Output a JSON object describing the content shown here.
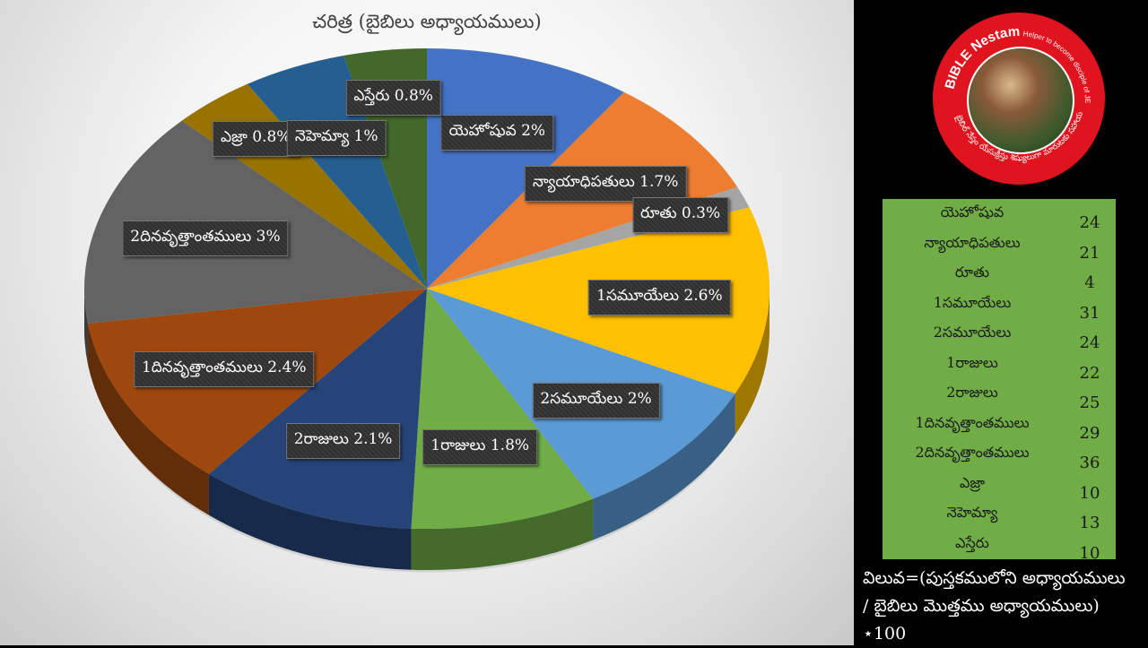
{
  "chart_data": {
    "type": "pie",
    "title": "చరిత్ర (బైబిలు అధ్యాయములు)",
    "slices": [
      {
        "name": "యెహోషువ",
        "label": "యెహోషువ 2%",
        "value": 2,
        "color": "#4472c4"
      },
      {
        "name": "న్యాయాధిపతులు",
        "label": "న్యాయాధిపతులు 1.7%",
        "value": 1.7,
        "color": "#ed7d31"
      },
      {
        "name": "రూతు",
        "label": "రూతు 0.3%",
        "value": 0.3,
        "color": "#a5a5a5"
      },
      {
        "name": "1సమూయేలు",
        "label": "1సమూయేలు 2.6%",
        "value": 2.6,
        "color": "#ffc000"
      },
      {
        "name": "2సమూయేలు",
        "label": "2సమూయేలు 2%",
        "value": 2,
        "color": "#5b9bd5"
      },
      {
        "name": "1రాజులు",
        "label": "1రాజులు 1.8%",
        "value": 1.8,
        "color": "#70ad47"
      },
      {
        "name": "2రాజులు",
        "label": "2రాజులు 2.1%",
        "value": 2.1,
        "color": "#264478"
      },
      {
        "name": "1దినవృత్తాంతములు",
        "label": "1దినవృత్తాంతములు 2.4%",
        "value": 2.4,
        "color": "#9e480e"
      },
      {
        "name": "2దినవృత్తాంతములు",
        "label": "2దినవృత్తాంతములు 3%",
        "value": 3,
        "color": "#636363"
      },
      {
        "name": "ఎజ్రా",
        "label": "ఎజ్రా 0.8%",
        "value": 0.8,
        "color": "#997300"
      },
      {
        "name": "నెహెమ్యా",
        "label": "నెహెమ్యా 1%",
        "value": 1,
        "color": "#255e91"
      },
      {
        "name": "ఎస్తేరు",
        "label": "ఎస్తేరు 0.8%",
        "value": 0.8,
        "color": "#43682b"
      }
    ]
  },
  "table": {
    "rows": [
      {
        "name": "యెహోషువ",
        "value": "24"
      },
      {
        "name": "న్యాయాధిపతులు",
        "value": "21"
      },
      {
        "name": "రూతు",
        "value": "4"
      },
      {
        "name": "1సమూయేలు",
        "value": "31"
      },
      {
        "name": "2సమూయేలు",
        "value": "24"
      },
      {
        "name": "1రాజులు",
        "value": "22"
      },
      {
        "name": "2రాజులు",
        "value": "25"
      },
      {
        "name": "1దినవృత్తాంతములు",
        "value": "29"
      },
      {
        "name": "2దినవృత్తాంతములు",
        "value": "36"
      },
      {
        "name": "ఎజ్రా",
        "value": "10"
      },
      {
        "name": "నెహెమ్యా",
        "value": "13"
      },
      {
        "name": "ఎస్తేరు",
        "value": "10"
      }
    ]
  },
  "formula": {
    "line1": "విలువ=(పుస్తకములోని అధ్యాయములు",
    "line2": "/ బైబిలు మొత్తము అధ్యాయములు)",
    "line3": "⋆100"
  },
  "logo": {
    "name_text": "BIBLE Nestam",
    "tagline_text": "Helper to become disciple of JESUS CHRIST",
    "telugu_text": "బైబిల్ నేస్తం యేసుక్రీస్తు శిష్యులుగా మారుటకు సహాయకం",
    "background_color": "#e0141e"
  }
}
